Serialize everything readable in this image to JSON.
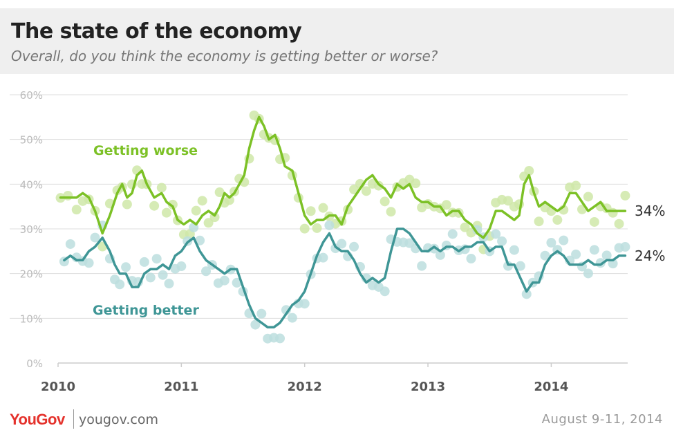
{
  "header": {
    "title": "The state of the economy",
    "subtitle": "Overall, do you think the economy is getting better or worse?"
  },
  "footer": {
    "brand": "YouGov",
    "site": "yougov.com",
    "date": "August 9-11, 2014"
  },
  "colors": {
    "worse": "#7cc126",
    "better": "#3f9696",
    "worse_points": "#cfe8a8",
    "better_points": "#bcdede",
    "grid": "#dddddd",
    "tick": "#bbbbbb"
  },
  "chart_data": {
    "type": "line",
    "title": "The state of the economy",
    "subtitle": "Overall, do you think the economy is getting better or worse?",
    "ylim": [
      0,
      60
    ],
    "xlim": [
      2010,
      2014.62
    ],
    "y_ticks": [
      "0%",
      "10%",
      "20%",
      "30%",
      "40%",
      "50%",
      "60%"
    ],
    "x_ticks": [
      "2010",
      "2011",
      "2012",
      "2013",
      "2014"
    ],
    "grid": true,
    "series": [
      {
        "name": "Getting worse",
        "end_label": "34%",
        "line": [
          [
            2010.02,
            37
          ],
          [
            2010.08,
            37
          ],
          [
            2010.15,
            37
          ],
          [
            2010.2,
            38
          ],
          [
            2010.25,
            37
          ],
          [
            2010.3,
            34
          ],
          [
            2010.36,
            29
          ],
          [
            2010.42,
            33
          ],
          [
            2010.48,
            38
          ],
          [
            2010.52,
            40
          ],
          [
            2010.56,
            37
          ],
          [
            2010.6,
            38
          ],
          [
            2010.64,
            42
          ],
          [
            2010.68,
            43
          ],
          [
            2010.72,
            40
          ],
          [
            2010.78,
            37
          ],
          [
            2010.84,
            38
          ],
          [
            2010.88,
            36
          ],
          [
            2010.93,
            35
          ],
          [
            2010.97,
            32
          ],
          [
            2011.02,
            31
          ],
          [
            2011.07,
            32
          ],
          [
            2011.12,
            31
          ],
          [
            2011.17,
            33
          ],
          [
            2011.22,
            34
          ],
          [
            2011.27,
            33
          ],
          [
            2011.31,
            35
          ],
          [
            2011.35,
            38
          ],
          [
            2011.39,
            37
          ],
          [
            2011.43,
            38
          ],
          [
            2011.47,
            40
          ],
          [
            2011.51,
            42
          ],
          [
            2011.55,
            48
          ],
          [
            2011.59,
            52
          ],
          [
            2011.63,
            55
          ],
          [
            2011.67,
            53
          ],
          [
            2011.71,
            50
          ],
          [
            2011.76,
            51
          ],
          [
            2011.8,
            48
          ],
          [
            2011.84,
            44
          ],
          [
            2011.9,
            43
          ],
          [
            2011.95,
            38
          ],
          [
            2012.0,
            33
          ],
          [
            2012.05,
            31
          ],
          [
            2012.1,
            32
          ],
          [
            2012.15,
            32
          ],
          [
            2012.2,
            33
          ],
          [
            2012.25,
            33
          ],
          [
            2012.3,
            31
          ],
          [
            2012.35,
            35
          ],
          [
            2012.4,
            37
          ],
          [
            2012.45,
            39
          ],
          [
            2012.5,
            41
          ],
          [
            2012.55,
            42
          ],
          [
            2012.6,
            40
          ],
          [
            2012.65,
            39
          ],
          [
            2012.7,
            37
          ],
          [
            2012.75,
            40
          ],
          [
            2012.8,
            39
          ],
          [
            2012.85,
            40
          ],
          [
            2012.9,
            37
          ],
          [
            2012.95,
            36
          ],
          [
            2013.0,
            36
          ],
          [
            2013.05,
            35
          ],
          [
            2013.1,
            35
          ],
          [
            2013.15,
            33
          ],
          [
            2013.2,
            34
          ],
          [
            2013.25,
            34
          ],
          [
            2013.3,
            32
          ],
          [
            2013.35,
            31
          ],
          [
            2013.4,
            29
          ],
          [
            2013.45,
            28
          ],
          [
            2013.5,
            30
          ],
          [
            2013.55,
            34
          ],
          [
            2013.6,
            34
          ],
          [
            2013.65,
            33
          ],
          [
            2013.7,
            32
          ],
          [
            2013.74,
            33
          ],
          [
            2013.78,
            40
          ],
          [
            2013.82,
            42
          ],
          [
            2013.86,
            38
          ],
          [
            2013.9,
            35
          ],
          [
            2013.95,
            36
          ],
          [
            2014.0,
            35
          ],
          [
            2014.05,
            34
          ],
          [
            2014.1,
            35
          ],
          [
            2014.15,
            38
          ],
          [
            2014.2,
            38
          ],
          [
            2014.25,
            36
          ],
          [
            2014.3,
            34
          ],
          [
            2014.35,
            35
          ],
          [
            2014.4,
            36
          ],
          [
            2014.45,
            34
          ],
          [
            2014.5,
            34
          ],
          [
            2014.55,
            34
          ],
          [
            2014.6,
            34
          ]
        ]
      },
      {
        "name": "Getting better",
        "end_label": "24%",
        "line": [
          [
            2010.05,
            23
          ],
          [
            2010.1,
            24
          ],
          [
            2010.15,
            23
          ],
          [
            2010.2,
            23
          ],
          [
            2010.25,
            25
          ],
          [
            2010.3,
            26
          ],
          [
            2010.36,
            28
          ],
          [
            2010.42,
            25
          ],
          [
            2010.46,
            22
          ],
          [
            2010.5,
            20
          ],
          [
            2010.55,
            20
          ],
          [
            2010.6,
            17
          ],
          [
            2010.65,
            17
          ],
          [
            2010.7,
            20
          ],
          [
            2010.75,
            21
          ],
          [
            2010.8,
            21
          ],
          [
            2010.85,
            22
          ],
          [
            2010.9,
            21
          ],
          [
            2010.95,
            24
          ],
          [
            2011.0,
            25
          ],
          [
            2011.05,
            27
          ],
          [
            2011.1,
            28
          ],
          [
            2011.15,
            25
          ],
          [
            2011.2,
            23
          ],
          [
            2011.25,
            22
          ],
          [
            2011.3,
            21
          ],
          [
            2011.35,
            20
          ],
          [
            2011.4,
            21
          ],
          [
            2011.45,
            21
          ],
          [
            2011.5,
            17
          ],
          [
            2011.55,
            13
          ],
          [
            2011.6,
            10
          ],
          [
            2011.65,
            9
          ],
          [
            2011.7,
            8
          ],
          [
            2011.75,
            8
          ],
          [
            2011.8,
            9
          ],
          [
            2011.85,
            11
          ],
          [
            2011.9,
            13
          ],
          [
            2011.95,
            14
          ],
          [
            2012.0,
            16
          ],
          [
            2012.05,
            20
          ],
          [
            2012.1,
            24
          ],
          [
            2012.15,
            27
          ],
          [
            2012.2,
            29
          ],
          [
            2012.25,
            26
          ],
          [
            2012.3,
            25
          ],
          [
            2012.35,
            25
          ],
          [
            2012.4,
            23
          ],
          [
            2012.45,
            20
          ],
          [
            2012.5,
            18
          ],
          [
            2012.55,
            19
          ],
          [
            2012.6,
            18
          ],
          [
            2012.65,
            19
          ],
          [
            2012.7,
            25
          ],
          [
            2012.75,
            30
          ],
          [
            2012.8,
            30
          ],
          [
            2012.85,
            29
          ],
          [
            2012.9,
            27
          ],
          [
            2012.95,
            25
          ],
          [
            2013.0,
            25
          ],
          [
            2013.05,
            26
          ],
          [
            2013.1,
            25
          ],
          [
            2013.15,
            26
          ],
          [
            2013.2,
            26
          ],
          [
            2013.25,
            25
          ],
          [
            2013.3,
            26
          ],
          [
            2013.35,
            26
          ],
          [
            2013.4,
            27
          ],
          [
            2013.45,
            27
          ],
          [
            2013.5,
            25
          ],
          [
            2013.55,
            26
          ],
          [
            2013.6,
            26
          ],
          [
            2013.65,
            22
          ],
          [
            2013.7,
            22
          ],
          [
            2013.75,
            19
          ],
          [
            2013.8,
            16
          ],
          [
            2013.85,
            18
          ],
          [
            2013.9,
            18
          ],
          [
            2013.95,
            22
          ],
          [
            2014.0,
            24
          ],
          [
            2014.05,
            25
          ],
          [
            2014.1,
            24
          ],
          [
            2014.15,
            22
          ],
          [
            2014.2,
            22
          ],
          [
            2014.25,
            22
          ],
          [
            2014.3,
            23
          ],
          [
            2014.35,
            22
          ],
          [
            2014.4,
            22
          ],
          [
            2014.45,
            23
          ],
          [
            2014.5,
            23
          ],
          [
            2014.55,
            24
          ],
          [
            2014.6,
            24
          ]
        ]
      }
    ]
  }
}
